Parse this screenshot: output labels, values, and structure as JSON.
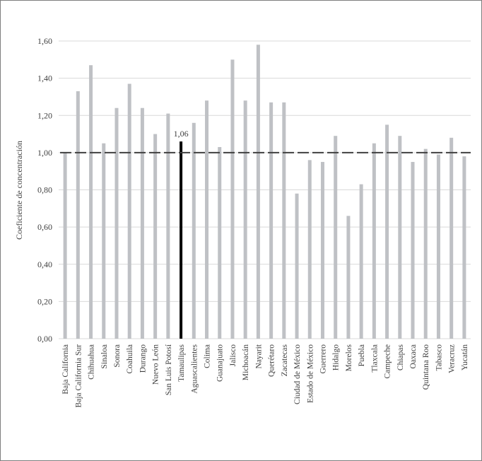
{
  "chart_data": {
    "type": "bar",
    "title": "",
    "xlabel": "",
    "ylabel": "Coeficiente de concentración",
    "ylim": [
      0,
      1.6
    ],
    "yticks": [
      "0,00",
      "0,20",
      "0,40",
      "0,60",
      "0,80",
      "1,00",
      "1,20",
      "1,40",
      "1,60"
    ],
    "grid": true,
    "reference_line": {
      "value": 1.0,
      "style": "dashed"
    },
    "highlight": {
      "category": "Tamaulipas",
      "label": "1,06"
    },
    "categories": [
      "Baja California",
      "Baja California Sur",
      "Chihuahua",
      "Sinaloa",
      "Sonora",
      "Coahuila",
      "Durango",
      "Nuevo León",
      "San Luis Potosí",
      "Tamaulipas",
      "Aguascalientes",
      "Colima",
      "Guanajuato",
      "Jalisco",
      "Michoacán",
      "Nayarit",
      "Querétaro",
      "Zacatecas",
      "Ciudad de México",
      "Estado de México",
      "Guerrero",
      "Hidalgo",
      "Morelos",
      "Puebla",
      "Tlaxcala",
      "Campeche",
      "Chiapas",
      "Oaxaca",
      "Quintana Roo",
      "Tabasco",
      "Veracruz",
      "Yucatán"
    ],
    "values": [
      1.0,
      1.33,
      1.47,
      1.05,
      1.24,
      1.37,
      1.24,
      1.1,
      1.21,
      1.06,
      1.16,
      1.28,
      1.03,
      1.5,
      1.28,
      1.58,
      1.27,
      1.27,
      0.78,
      0.96,
      0.95,
      1.09,
      0.66,
      0.83,
      1.05,
      1.15,
      1.09,
      0.95,
      1.02,
      0.99,
      1.08,
      0.98
    ],
    "colors": {
      "bar": "#bfc1c5",
      "highlight": "#000000",
      "grid": "#d9d9d9",
      "reference": "#404040"
    }
  }
}
